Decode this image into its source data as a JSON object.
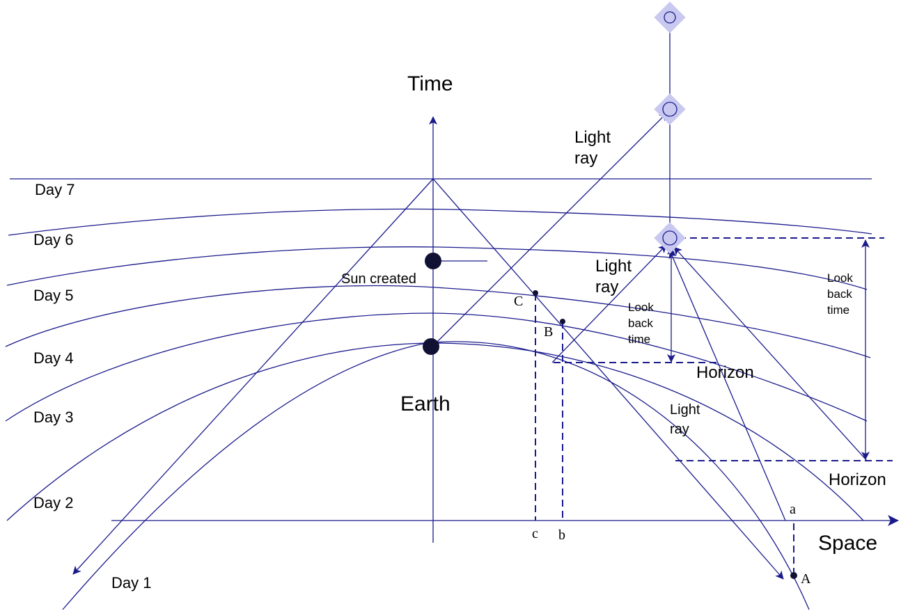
{
  "axes": {
    "time_label": "Time",
    "space_label": "Space"
  },
  "days": [
    "Day 7",
    "Day 6",
    "Day 5",
    "Day 4",
    "Day 3",
    "Day 2",
    "Day 1"
  ],
  "objects": {
    "sun": "Sun created",
    "earth": "Earth"
  },
  "annotations": {
    "light_ray": [
      "Light",
      "ray"
    ],
    "look_back_time": [
      "Look",
      "back",
      "time"
    ],
    "horizon": "Horizon"
  },
  "points": {
    "upper": [
      "A",
      "B",
      "C"
    ],
    "lower": [
      "a",
      "b",
      "c"
    ]
  },
  "colors": {
    "line": "#1a1a8c",
    "marker": "#111133",
    "star_glow": "#c8c8f0"
  }
}
